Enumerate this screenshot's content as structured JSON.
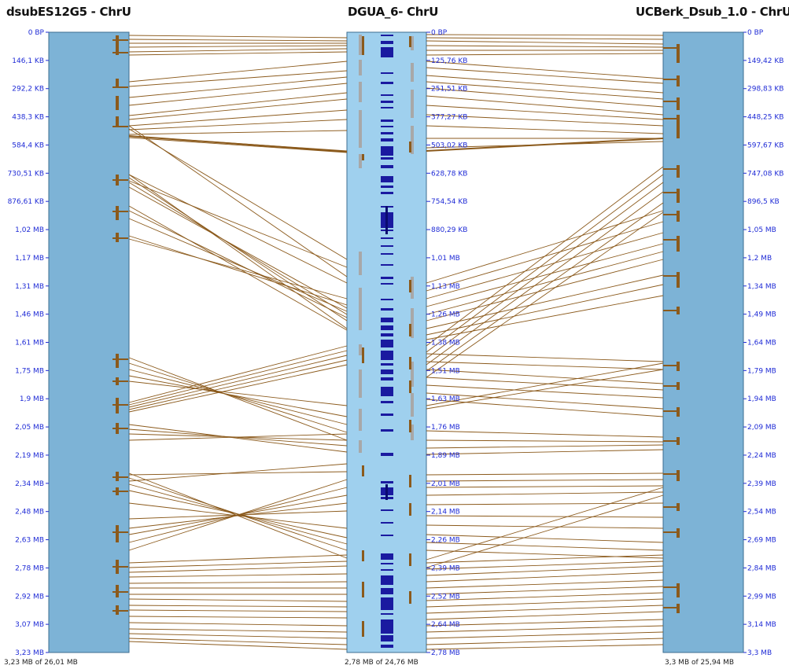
{
  "chromosomes": [
    {
      "title": "dsubES12G5 - ChrU",
      "ticks": [
        "0 BP",
        "146,1 KB",
        "292,2 KB",
        "438,3 KB",
        "584,4 KB",
        "730,51 KB",
        "876,61 KB",
        "1,02 MB",
        "1,17 MB",
        "1,31 MB",
        "1,46 MB",
        "1,61 MB",
        "1,75 MB",
        "1,9 MB",
        "2,05 MB",
        "2,19 MB",
        "2,34 MB",
        "2,48 MB",
        "2,63 MB",
        "2,78 MB",
        "2,92 MB",
        "3,07 MB",
        "3,23 MB"
      ],
      "footer": "3,23 MB of 26,01 MB"
    },
    {
      "title": "DGUA_6- ChrU",
      "ticks": [
        "0 BP",
        "125,76 KB",
        "251,51 KB",
        "377,27 KB",
        "503,02 KB",
        "628,78 KB",
        "754,54 KB",
        "880,29 KB",
        "1,01 MB",
        "1,13 MB",
        "1,26 MB",
        "1,38 MB",
        "1,51 MB",
        "1,63 MB",
        "1,76 MB",
        "1,89 MB",
        "2,01 MB",
        "2,14 MB",
        "2,26 MB",
        "2,39 MB",
        "2,52 MB",
        "2,64 MB",
        "2,78 MB"
      ],
      "footer": "2,78 MB of 24,76 MB"
    },
    {
      "title": "UCBerk_Dsub_1.0 - ChrU",
      "ticks": [
        "0 BP",
        "149,42 KB",
        "298,83 KB",
        "448,25 KB",
        "597,67 KB",
        "747,08 KB",
        "896,5 KB",
        "1,05 MB",
        "1,2 MB",
        "1,34 MB",
        "1,49 MB",
        "1,64 MB",
        "1,79 MB",
        "1,94 MB",
        "2,09 MB",
        "2,24 MB",
        "2,39 MB",
        "2,54 MB",
        "2,69 MB",
        "2,84 MB",
        "2,99 MB",
        "3,14 MB",
        "3,3 MB"
      ],
      "footer": "3,3 MB of 25,94 MB"
    }
  ],
  "colors": {
    "left_bar": "#7db3d6",
    "middle_bar": "#9fd0ee",
    "right_bar": "#7db3d6",
    "synteny_line": "#8b5a1c",
    "block": "#8b5a1c",
    "gene_mark": "#1a1aa0",
    "tick_text": "#1f2bd6",
    "grey_block": "#a8a8a8"
  }
}
